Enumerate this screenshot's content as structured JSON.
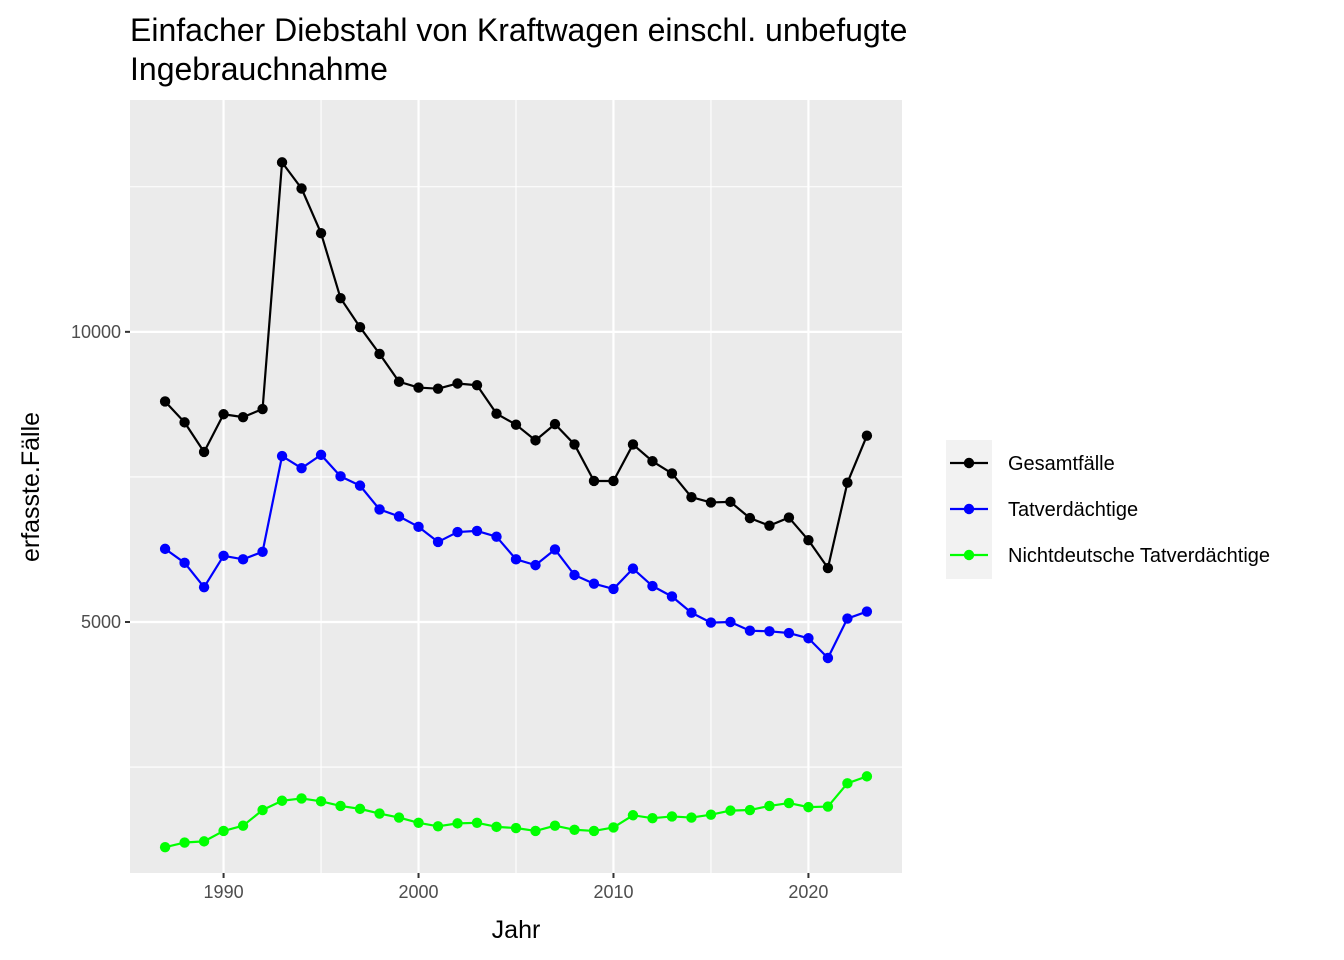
{
  "chart_data": {
    "type": "line",
    "title_lines": [
      "Einfacher Diebstahl von Kraftwagen einschl. unbefugte",
      "Ingebrauchnahme"
    ],
    "xlabel": "Jahr",
    "ylabel": "erfasste.Fälle",
    "x_ticks": [
      1990,
      2000,
      2010,
      2020
    ],
    "x_tick_labels": [
      "1990",
      "2000",
      "2010",
      "2020"
    ],
    "y_ticks": [
      5000,
      10000
    ],
    "y_tick_labels": [
      "5000",
      "10000"
    ],
    "xlim": [
      1985.2,
      2024.8
    ],
    "ylim": [
      675,
      13995
    ],
    "grid": true,
    "legend_position": "right",
    "x": [
      1987,
      1988,
      1989,
      1990,
      1991,
      1992,
      1993,
      1994,
      1995,
      1996,
      1997,
      1998,
      1999,
      2000,
      2001,
      2002,
      2003,
      2004,
      2005,
      2006,
      2007,
      2008,
      2009,
      2010,
      2011,
      2012,
      2013,
      2014,
      2015,
      2016,
      2017,
      2018,
      2019,
      2020,
      2021,
      2022,
      2023
    ],
    "series": [
      {
        "name": "Gesamtfälle",
        "color": "#000000",
        "values": [
          8800,
          8440,
          7930,
          8580,
          8530,
          8670,
          12920,
          12470,
          11700,
          10580,
          10080,
          9620,
          9140,
          9040,
          9020,
          9110,
          9080,
          8590,
          8400,
          8130,
          8410,
          8060,
          7430,
          7430,
          8060,
          7770,
          7560,
          7150,
          7060,
          7070,
          6790,
          6660,
          6800,
          6410,
          5930,
          7400,
          8210
        ]
      },
      {
        "name": "Tatverdächtige",
        "color": "#0000ff",
        "values": [
          6260,
          6020,
          5600,
          6140,
          6080,
          6210,
          7860,
          7650,
          7880,
          7510,
          7350,
          6940,
          6820,
          6640,
          6380,
          6550,
          6570,
          6470,
          6080,
          5980,
          6250,
          5810,
          5660,
          5570,
          5920,
          5620,
          5440,
          5160,
          4990,
          5000,
          4850,
          4840,
          4810,
          4720,
          4380,
          5060,
          5180
        ]
      },
      {
        "name": "Nichtdeutsche Tatverdächtige",
        "color": "#00ff00",
        "values": [
          1120,
          1200,
          1220,
          1400,
          1490,
          1760,
          1920,
          1960,
          1910,
          1830,
          1780,
          1700,
          1630,
          1540,
          1480,
          1530,
          1540,
          1470,
          1450,
          1400,
          1490,
          1420,
          1400,
          1460,
          1670,
          1620,
          1650,
          1630,
          1680,
          1750,
          1760,
          1830,
          1880,
          1810,
          1820,
          2220,
          2340
        ]
      }
    ]
  }
}
